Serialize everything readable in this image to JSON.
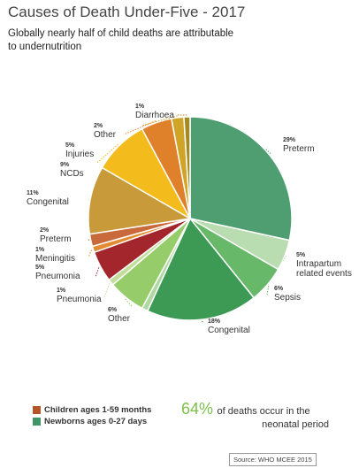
{
  "title": "Causes of Death Under-Five - 2017",
  "subtitle": "Globally nearly half of child deaths are attributable to undernutrition",
  "legend": [
    {
      "label": "Children ages 1-59 months",
      "color": "#b5562a"
    },
    {
      "label": "Newborns ages 0-27 days",
      "color": "#3f9566"
    }
  ],
  "stat": {
    "percent": "64%",
    "text_line1": "of deaths occur in the",
    "text_line2": "neonatal period"
  },
  "source": "Source: WHO MCEE 2015",
  "chart_data": {
    "type": "pie",
    "title": "Causes of Death Under-Five - 2017",
    "slices": [
      {
        "label": "Preterm",
        "value": 29,
        "pct_text": "29%",
        "group": "Newborns ages 0-27 days",
        "color": "#4f9e72"
      },
      {
        "label": "Intrapartum related events",
        "value": 5,
        "pct_text": "5%",
        "group": "Newborns ages 0-27 days",
        "color": "#b9dcb0"
      },
      {
        "label": "Sepsis",
        "value": 6,
        "pct_text": "6%",
        "group": "Newborns ages 0-27 days",
        "color": "#68b86a"
      },
      {
        "label": "Congenital",
        "value": 18,
        "pct_text": "18%",
        "group": "Newborns ages 0-27 days",
        "color": "#3c9a55"
      },
      {
        "label": "",
        "value": 1,
        "pct_text": "",
        "group": "Newborns ages 0-27 days",
        "color": "#b0d8a3"
      },
      {
        "label": "Other",
        "value": 6,
        "pct_text": "6%",
        "group": "Newborns ages 0-27 days",
        "color": "#96cc6a"
      },
      {
        "label": "Pneumonia",
        "value": 1,
        "pct_text": "1%",
        "group": "Newborns ages 0-27 days",
        "color": "#c3dd9a"
      },
      {
        "label": "Pneumonia",
        "value": 5,
        "pct_text": "5%",
        "group": "Children ages 1-59 months",
        "color": "#a3262c"
      },
      {
        "label": "Meningitis",
        "value": 1,
        "pct_text": "1%",
        "group": "Children ages 1-59 months",
        "color": "#e38b30"
      },
      {
        "label": "Preterm",
        "value": 2,
        "pct_text": "2%",
        "group": "Children ages 1-59 months",
        "color": "#c96a3c"
      },
      {
        "label": "Congenital",
        "value": 11,
        "pct_text": "11%",
        "group": "Children ages 1-59 months",
        "color": "#c89a3a"
      },
      {
        "label": "NCDs",
        "value": 9,
        "pct_text": "9%",
        "group": "Children ages 1-59 months",
        "color": "#f4bb1d"
      },
      {
        "label": "Injuries",
        "value": 5,
        "pct_text": "5%",
        "group": "Children ages 1-59 months",
        "color": "#de812a"
      },
      {
        "label": "Other",
        "value": 2,
        "pct_text": "2%",
        "group": "Children ages 1-59 months",
        "color": "#d0a426"
      },
      {
        "label": "Diarrhoea",
        "value": 1,
        "pct_text": "1%",
        "group": "Children ages 1-59 months",
        "color": "#a38a24"
      }
    ]
  }
}
